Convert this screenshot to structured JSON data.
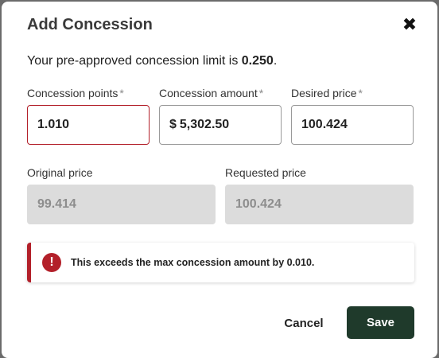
{
  "dialog": {
    "title": "Add Concession",
    "close_symbol": "✖"
  },
  "limit": {
    "prefix": "Your pre-approved concession limit is ",
    "value": "0.250",
    "suffix": "."
  },
  "fields": {
    "concession_points": {
      "label": "Concession points",
      "required_mark": "*",
      "value": "1.010"
    },
    "concession_amount": {
      "label": "Concession amount",
      "required_mark": "*",
      "prefix": "$",
      "value": "5,302.50"
    },
    "desired_price": {
      "label": "Desired price",
      "required_mark": "*",
      "value": "100.424"
    },
    "original_price": {
      "label": "Original price",
      "value": "99.414"
    },
    "requested_price": {
      "label": "Requested price",
      "value": "100.424"
    }
  },
  "alert": {
    "icon_symbol": "!",
    "prefix": "This exceeds the max concession amount by ",
    "value": "0.010",
    "suffix": ".",
    "color": "#b3202a"
  },
  "actions": {
    "cancel_label": "Cancel",
    "save_label": "Save",
    "save_color": "#1f3a2b"
  }
}
